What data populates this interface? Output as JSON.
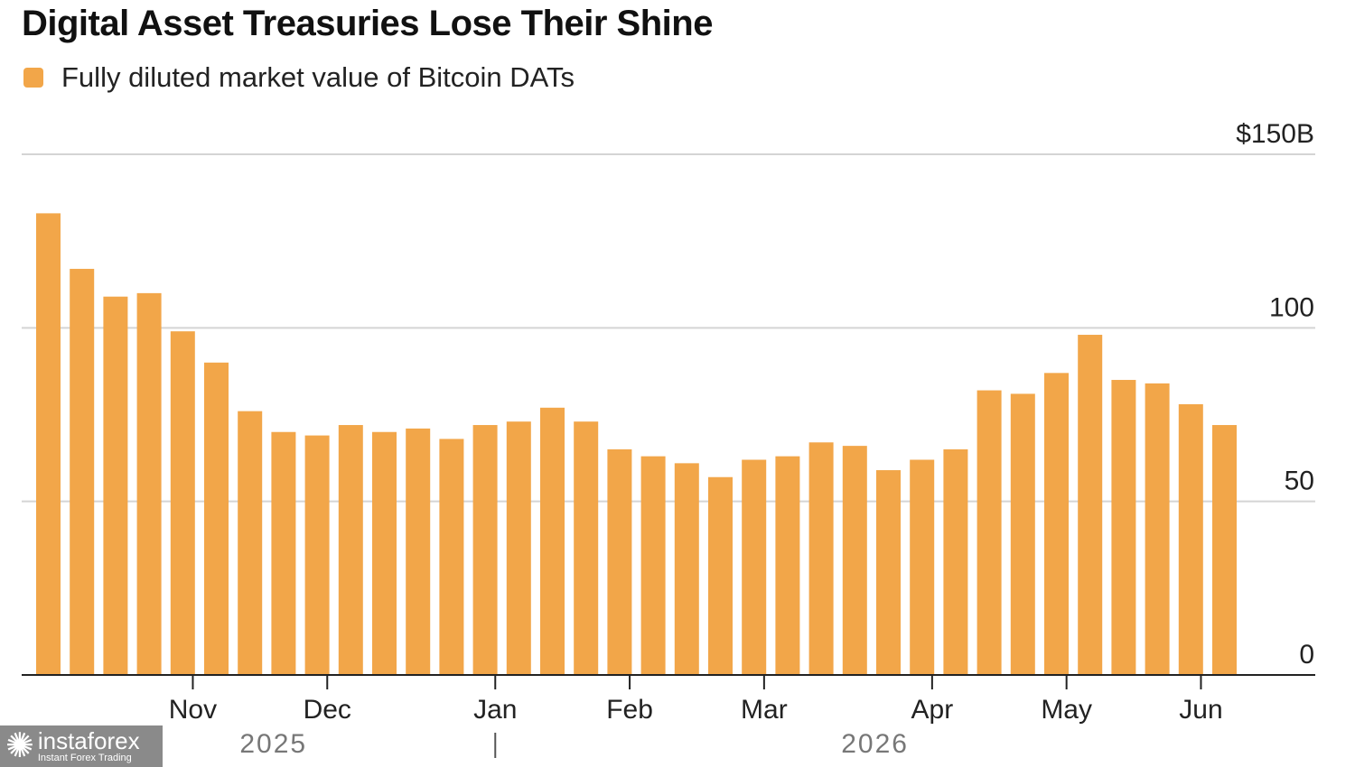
{
  "title": "Digital Asset Treasuries Lose Their Shine",
  "legend": {
    "label": "Fully diluted market value of Bitcoin DATs",
    "color": "#F2A649"
  },
  "chart_data": {
    "type": "bar",
    "title": "Digital Asset Treasuries Lose Their Shine",
    "series": [
      {
        "name": "Fully diluted market value of Bitcoin DATs",
        "color": "#F2A649",
        "values": [
          133,
          117,
          109,
          110,
          99,
          90,
          76,
          70,
          69,
          72,
          70,
          71,
          68,
          72,
          73,
          77,
          73,
          65,
          63,
          61,
          57,
          62,
          63,
          67,
          66,
          59,
          62,
          65,
          82,
          81,
          87,
          98,
          85,
          84,
          78,
          72
        ]
      }
    ],
    "ylim": [
      0,
      150
    ],
    "y_ticks": [
      {
        "value": 0,
        "label": "0"
      },
      {
        "value": 50,
        "label": "50"
      },
      {
        "value": 100,
        "label": "100"
      },
      {
        "value": 150,
        "label": "$150B"
      }
    ],
    "x_month_labels": [
      {
        "label": "Nov",
        "pos": 4.3
      },
      {
        "label": "Dec",
        "pos": 8.3
      },
      {
        "label": "Jan",
        "pos": 13.3
      },
      {
        "label": "Feb",
        "pos": 17.3
      },
      {
        "label": "Mar",
        "pos": 21.3
      },
      {
        "label": "Apr",
        "pos": 26.3
      },
      {
        "label": "May",
        "pos": 30.3
      },
      {
        "label": "Jun",
        "pos": 34.3
      }
    ],
    "x_year_labels": [
      {
        "label": "2025",
        "pos": 6.7
      },
      {
        "label": "2026",
        "pos": 24.6
      }
    ],
    "year_divider_pos": 13.3,
    "grid": true,
    "legend_position": "top-left"
  },
  "watermark": {
    "name": "instaforex",
    "tagline": "Instant Forex Trading"
  }
}
